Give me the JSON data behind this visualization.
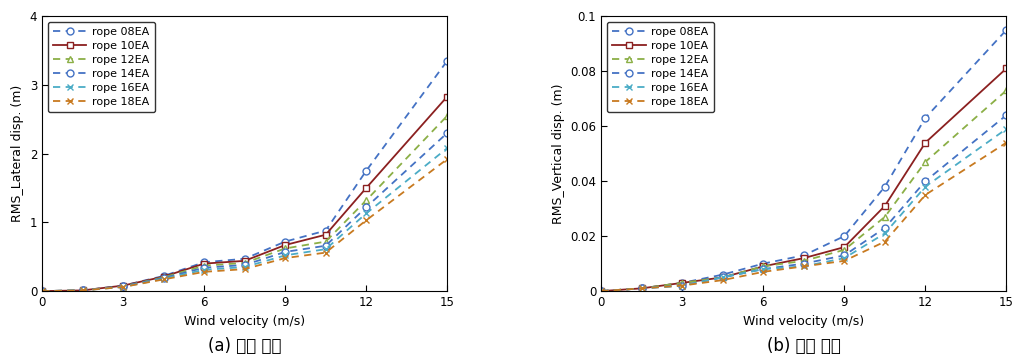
{
  "x": [
    0,
    1.5,
    3,
    4.5,
    6,
    7.5,
    9,
    10.5,
    12,
    15
  ],
  "lateral": {
    "rope08EA": [
      0,
      0.01,
      0.08,
      0.22,
      0.42,
      0.47,
      0.72,
      0.88,
      1.75,
      3.35
    ],
    "rope10EA": [
      0,
      0.01,
      0.08,
      0.21,
      0.4,
      0.44,
      0.67,
      0.82,
      1.5,
      2.83
    ],
    "rope12EA": [
      0,
      0.01,
      0.07,
      0.2,
      0.37,
      0.41,
      0.62,
      0.72,
      1.32,
      2.55
    ],
    "rope14EA": [
      0,
      0.01,
      0.07,
      0.19,
      0.34,
      0.38,
      0.57,
      0.66,
      1.22,
      2.3
    ],
    "rope16EA": [
      0,
      0.01,
      0.06,
      0.18,
      0.31,
      0.35,
      0.52,
      0.61,
      1.13,
      2.08
    ],
    "rope18EA": [
      0,
      0.01,
      0.06,
      0.17,
      0.28,
      0.32,
      0.48,
      0.56,
      1.03,
      1.92
    ]
  },
  "vertical": {
    "rope08EA": [
      0,
      0.001,
      0.003,
      0.006,
      0.01,
      0.013,
      0.02,
      0.038,
      0.063,
      0.095
    ],
    "rope10EA": [
      0,
      0.001,
      0.003,
      0.005,
      0.009,
      0.012,
      0.016,
      0.031,
      0.054,
      0.081
    ],
    "rope12EA": [
      0,
      0.001,
      0.003,
      0.005,
      0.009,
      0.011,
      0.015,
      0.027,
      0.047,
      0.073
    ],
    "rope14EA": [
      0,
      0.001,
      0.002,
      0.005,
      0.008,
      0.01,
      0.013,
      0.023,
      0.04,
      0.064
    ],
    "rope16EA": [
      0,
      0.001,
      0.002,
      0.005,
      0.008,
      0.009,
      0.012,
      0.021,
      0.038,
      0.059
    ],
    "rope18EA": [
      0,
      0.001,
      0.002,
      0.004,
      0.007,
      0.009,
      0.011,
      0.018,
      0.035,
      0.054
    ]
  },
  "series_keys": [
    "rope08EA",
    "rope10EA",
    "rope12EA",
    "rope14EA",
    "rope16EA",
    "rope18EA"
  ],
  "labels": [
    "rope 08EA",
    "rope 10EA",
    "rope 12EA",
    "rope 14EA",
    "rope 16EA",
    "rope 18EA"
  ],
  "colors_map": {
    "rope08EA": "#4472C4",
    "rope10EA": "#8B2020",
    "rope12EA": "#8BAF46",
    "rope14EA": "#4472C4",
    "rope16EA": "#4BACC6",
    "rope18EA": "#C87A20"
  },
  "linestyles_map": {
    "rope08EA": "--",
    "rope10EA": "-",
    "rope12EA": "--",
    "rope14EA": "--",
    "rope16EA": "--",
    "rope18EA": "--"
  },
  "markers_map": {
    "rope08EA": "o",
    "rope10EA": "s",
    "rope12EA": "^",
    "rope14EA": "o",
    "rope16EA": "x",
    "rope18EA": "x"
  },
  "mfc_map": {
    "rope08EA": "white",
    "rope10EA": "white",
    "rope12EA": "white",
    "rope14EA": "white",
    "rope16EA": "white",
    "rope18EA": "white"
  },
  "lateral_ylim": [
    0,
    4
  ],
  "lateral_yticks": [
    0,
    1,
    2,
    3,
    4
  ],
  "vertical_ylim": [
    0,
    0.1
  ],
  "vertical_yticks": [
    0,
    0.02,
    0.04,
    0.06,
    0.08,
    0.1
  ],
  "xlim": [
    0,
    15
  ],
  "xticks": [
    0,
    3,
    6,
    9,
    12,
    15
  ],
  "xlabel": "Wind velocity (m/s)",
  "lateral_ylabel": "RMS_Lateral disp. (m)",
  "vertical_ylabel": "RMS_Vertical disp. (m)",
  "caption_a": "(a) 수평 변위",
  "caption_b": "(b) 수직 변위"
}
